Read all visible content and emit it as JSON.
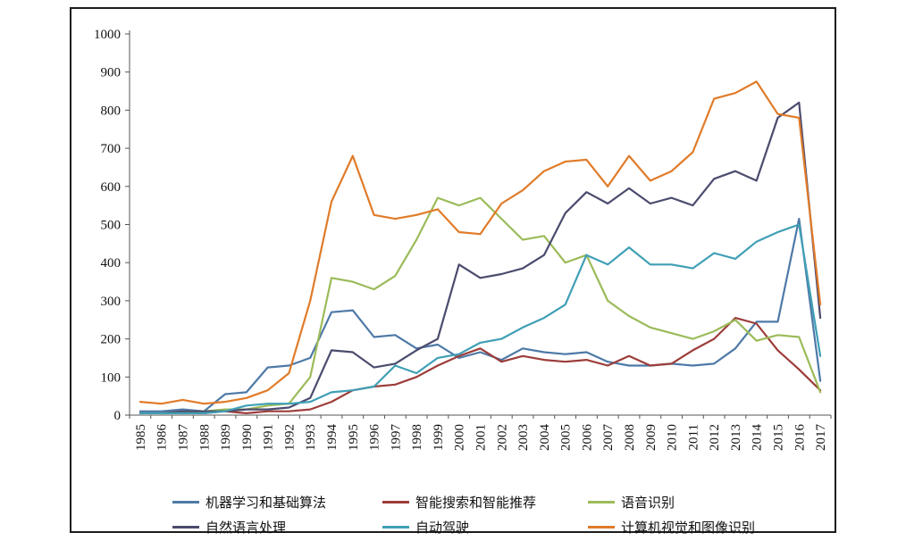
{
  "chart_data": {
    "type": "line",
    "title": "",
    "xlabel": "",
    "ylabel": "",
    "ylim": [
      0,
      1000
    ],
    "y_tick_step": 100,
    "grid": false,
    "legend_position": "bottom",
    "categories": [
      1985,
      1986,
      1987,
      1988,
      1989,
      1990,
      1991,
      1992,
      1993,
      1994,
      1995,
      1996,
      1997,
      1998,
      1999,
      2000,
      2001,
      2002,
      2003,
      2004,
      2005,
      2006,
      2007,
      2008,
      2009,
      2010,
      2011,
      2012,
      2013,
      2014,
      2015,
      2016,
      2017
    ],
    "series": [
      {
        "name": "机器学习和基础算法",
        "color": "#4e79a7",
        "values": [
          10,
          10,
          15,
          10,
          55,
          60,
          125,
          130,
          150,
          270,
          275,
          205,
          210,
          175,
          185,
          150,
          165,
          145,
          175,
          165,
          160,
          165,
          140,
          130,
          130,
          135,
          130,
          135,
          175,
          245,
          245,
          515,
          90
        ]
      },
      {
        "name": "智能搜索和智能推荐",
        "color": "#9c3d3a",
        "values": [
          5,
          5,
          10,
          5,
          10,
          5,
          10,
          10,
          15,
          35,
          65,
          75,
          80,
          100,
          130,
          155,
          175,
          140,
          155,
          145,
          140,
          145,
          130,
          155,
          130,
          135,
          170,
          200,
          255,
          240,
          170,
          120,
          65
        ]
      },
      {
        "name": "语音识别",
        "color": "#9bbb59",
        "values": [
          5,
          5,
          10,
          10,
          15,
          15,
          25,
          30,
          100,
          360,
          350,
          330,
          365,
          460,
          570,
          550,
          570,
          515,
          460,
          470,
          400,
          420,
          300,
          260,
          230,
          215,
          200,
          220,
          250,
          195,
          210,
          205,
          60
        ]
      },
      {
        "name": "自然语言处理",
        "color": "#4b4b6e",
        "values": [
          5,
          5,
          10,
          10,
          10,
          15,
          15,
          20,
          45,
          170,
          165,
          125,
          135,
          170,
          200,
          395,
          360,
          370,
          385,
          420,
          530,
          585,
          555,
          595,
          555,
          570,
          550,
          620,
          640,
          615,
          780,
          820,
          255
        ]
      },
      {
        "name": "自动驾驶",
        "color": "#3f9fb5",
        "values": [
          5,
          5,
          5,
          5,
          10,
          25,
          30,
          30,
          35,
          60,
          65,
          75,
          130,
          110,
          150,
          160,
          190,
          200,
          230,
          255,
          290,
          420,
          395,
          440,
          395,
          395,
          385,
          425,
          410,
          455,
          480,
          500,
          155
        ]
      },
      {
        "name": "计算机视觉和图像识别",
        "color": "#e07b29",
        "values": [
          35,
          30,
          40,
          30,
          35,
          45,
          65,
          110,
          300,
          560,
          680,
          525,
          515,
          525,
          540,
          480,
          475,
          555,
          590,
          640,
          665,
          670,
          600,
          680,
          615,
          640,
          690,
          830,
          845,
          875,
          790,
          780,
          290
        ]
      }
    ],
    "y_tick_labels": [
      "0",
      "100",
      "200",
      "300",
      "400",
      "500",
      "600",
      "700",
      "800",
      "900",
      "1000"
    ]
  },
  "legend": {
    "items": [
      {
        "label": "机器学习和基础算法"
      },
      {
        "label": "智能搜索和智能推荐"
      },
      {
        "label": "语音识别"
      },
      {
        "label": "自然语言处理"
      },
      {
        "label": "自动驾驶"
      },
      {
        "label": "计算机视觉和图像识别"
      }
    ]
  }
}
